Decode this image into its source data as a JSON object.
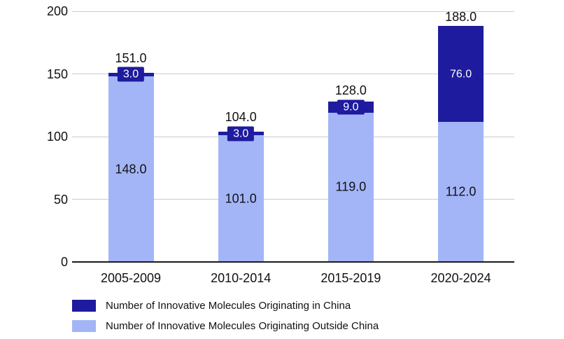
{
  "chart_data": {
    "type": "bar",
    "stacked": true,
    "title": "",
    "xlabel": "",
    "ylabel": "",
    "categories": [
      "2005-2009",
      "2010-2014",
      "2015-2019",
      "2020-2024"
    ],
    "series": [
      {
        "name": "Number of Innovative Molecules Originating in China",
        "color": "#1E1B9E",
        "values": [
          3.0,
          3.0,
          9.0,
          76.0
        ]
      },
      {
        "name": "Number of Innovative Molecules Originating Outside China",
        "color": "#A3B5F7",
        "values": [
          148.0,
          101.0,
          119.0,
          112.0
        ]
      }
    ],
    "totals": [
      151.0,
      104.0,
      128.0,
      188.0
    ],
    "value_labels": {
      "totals_above_bars": [
        "151.0",
        "104.0",
        "128.0",
        "188.0"
      ],
      "in_china_segments": [
        "3.0",
        "3.0",
        "9.0",
        "76.0"
      ],
      "outside_china_segments": [
        "148.0",
        "101.0",
        "119.0",
        "112.0"
      ]
    },
    "ylim": [
      0,
      200
    ],
    "yticks": [
      0,
      50,
      100,
      150,
      200
    ],
    "ytick_labels": [
      "0",
      "50",
      "100",
      "150",
      "200"
    ],
    "grid": true,
    "legend_position": "bottom-left",
    "colors": {
      "background": "#FFFFFF",
      "grid": "#CCCCCC",
      "axis": "#1A1A1A",
      "text": "#111111",
      "label_on_dark_segment": "#FFFFFF"
    }
  }
}
